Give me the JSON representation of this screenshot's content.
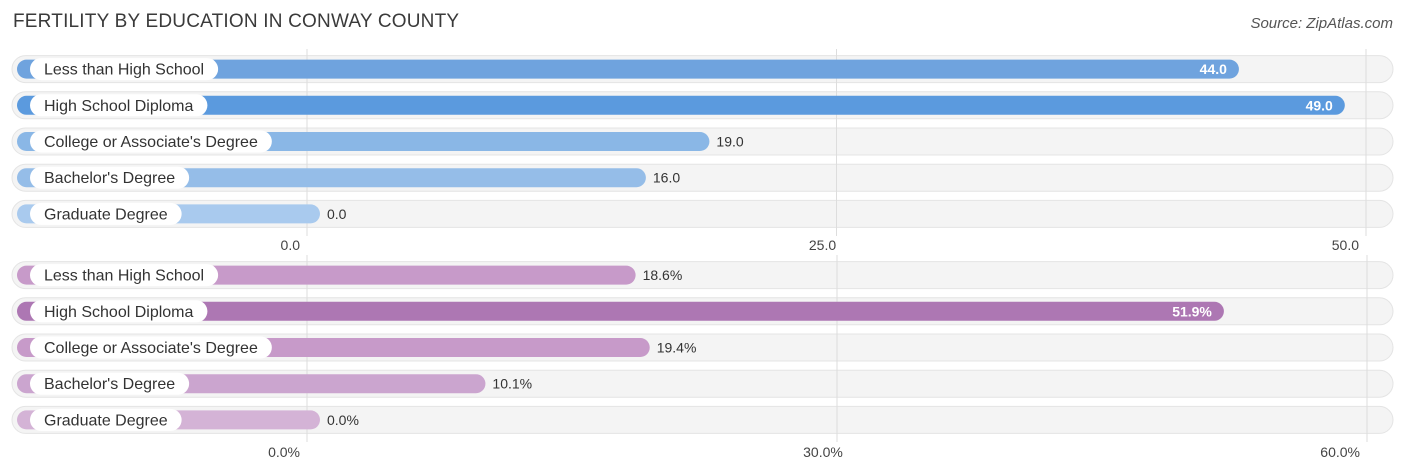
{
  "title": "FERTILITY BY EDUCATION IN CONWAY COUNTY",
  "source": "Source: ZipAtlas.com",
  "chart_data": [
    {
      "type": "bar",
      "orientation": "horizontal",
      "categories": [
        "Less than High School",
        "High School Diploma",
        "College or Associate's Degree",
        "Bachelor's Degree",
        "Graduate Degree"
      ],
      "values": [
        44.0,
        49.0,
        19.0,
        16.0,
        0.0
      ],
      "value_labels": [
        "44.0",
        "49.0",
        "19.0",
        "16.0",
        "0.0"
      ],
      "xlim": [
        0,
        50
      ],
      "ticks": [
        0,
        25,
        50
      ],
      "tick_labels": [
        "0.0",
        "25.0",
        "50.0"
      ],
      "colors": [
        "#6fa3de",
        "#5b9ade",
        "#8ab7e6",
        "#95bde8",
        "#a9caee"
      ],
      "grid": true
    },
    {
      "type": "bar",
      "orientation": "horizontal",
      "categories": [
        "Less than High School",
        "High School Diploma",
        "College or Associate's Degree",
        "Bachelor's Degree",
        "Graduate Degree"
      ],
      "values": [
        18.6,
        51.9,
        19.4,
        10.1,
        0.0
      ],
      "value_labels": [
        "18.6%",
        "51.9%",
        "19.4%",
        "10.1%",
        "0.0%"
      ],
      "xlim": [
        0,
        60
      ],
      "ticks": [
        0,
        30,
        60
      ],
      "tick_labels": [
        "0.0%",
        "30.0%",
        "60.0%"
      ],
      "colors": [
        "#c79ac9",
        "#ad77b3",
        "#c79ac9",
        "#cba5cf",
        "#d4b3d6"
      ],
      "grid": true
    }
  ]
}
